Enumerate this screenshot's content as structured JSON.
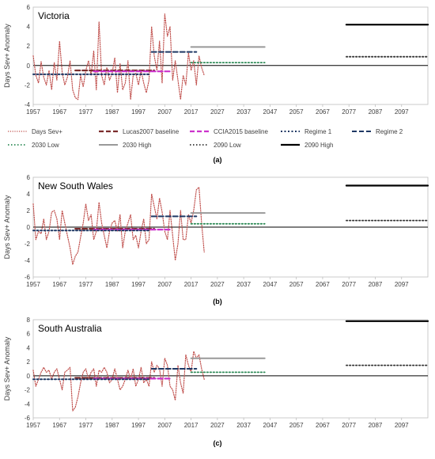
{
  "chart_data": [
    {
      "type": "line",
      "panel_label": "(a)",
      "title": "Victoria",
      "ylabel": "Days Sev+ Anomaly",
      "ylim": [
        -4,
        6
      ],
      "yticks": [
        -4,
        -2,
        0,
        2,
        4,
        6
      ],
      "xlim": [
        1957,
        2107
      ],
      "xticks": [
        1957,
        1967,
        1977,
        1987,
        1997,
        2007,
        2017,
        2027,
        2037,
        2047,
        2057,
        2067,
        2077,
        2087,
        2097
      ],
      "series": [
        {
          "name": "Days Sev+",
          "x": [
            1957,
            1958,
            1959,
            1960,
            1961,
            1962,
            1963,
            1964,
            1965,
            1966,
            1967,
            1968,
            1969,
            1970,
            1971,
            1972,
            1973,
            1974,
            1975,
            1976,
            1977,
            1978,
            1979,
            1980,
            1981,
            1982,
            1983,
            1984,
            1985,
            1986,
            1987,
            1988,
            1989,
            1990,
            1991,
            1992,
            1993,
            1994,
            1995,
            1996,
            1997,
            1998,
            1999,
            2000,
            2001,
            2002,
            2003,
            2004,
            2005,
            2006,
            2007,
            2008,
            2009,
            2010,
            2011,
            2012,
            2013,
            2014,
            2015,
            2016,
            2017,
            2018,
            2019,
            2020,
            2021,
            2022
          ],
          "values": [
            1,
            -1,
            -1.8,
            0.4,
            -1.2,
            -2,
            -0.5,
            -2.5,
            0.3,
            -1.5,
            2.5,
            -0.7,
            -2,
            -1.2,
            0.5,
            -2.5,
            -3.3,
            -3.5,
            -1,
            -2.2,
            -0.5,
            0.5,
            -1,
            1.5,
            -2.5,
            4.5,
            -1,
            -2,
            -0.2,
            -1.5,
            -0.8,
            0.8,
            -2.8,
            0.2,
            -2.5,
            -1.8,
            0.5,
            -3.5,
            -1,
            -0.8,
            -2,
            -0.5,
            -1.8,
            -2.8,
            -1.5,
            4,
            1,
            -0.5,
            2.5,
            -1.8,
            5.3,
            3,
            4,
            -1.5,
            0.5,
            -1.5,
            -3.5,
            -1,
            -2,
            1.3,
            -0.5,
            0.5,
            -2,
            1,
            -0.2,
            -1
          ]
        },
        {
          "name": "Lucas2007 baseline",
          "x": [
            1973,
            2003
          ],
          "values": [
            -0.5,
            -0.5
          ]
        },
        {
          "name": "CCIA2015 baseline",
          "x": [
            1980,
            2009
          ],
          "values": [
            -0.6,
            -0.6
          ]
        },
        {
          "name": "Regime 1",
          "x": [
            1957,
            2001
          ],
          "values": [
            -0.9,
            -0.9
          ]
        },
        {
          "name": "Regime 2",
          "x": [
            2002,
            2019
          ],
          "values": [
            1.4,
            1.4
          ]
        },
        {
          "name": "2030 Low",
          "x": [
            2017,
            2045
          ],
          "values": [
            0.3,
            0.3
          ]
        },
        {
          "name": "2030 High",
          "x": [
            2017,
            2045
          ],
          "values": [
            1.9,
            1.9
          ]
        },
        {
          "name": "2090 Low",
          "x": [
            2076,
            2107
          ],
          "values": [
            0.9,
            0.9
          ]
        },
        {
          "name": "2090 High",
          "x": [
            2076,
            2107
          ],
          "values": [
            4.2,
            4.2
          ]
        }
      ]
    },
    {
      "type": "line",
      "panel_label": "(b)",
      "title": "New South Wales",
      "ylabel": "Days Sev+ Anomaly",
      "ylim": [
        -6,
        6
      ],
      "yticks": [
        -6,
        -4,
        -2,
        0,
        2,
        4,
        6
      ],
      "xlim": [
        1957,
        2107
      ],
      "xticks": [
        1957,
        1967,
        1977,
        1987,
        1997,
        2007,
        2017,
        2027,
        2037,
        2047,
        2057,
        2067,
        2077,
        2087,
        2097
      ],
      "series": [
        {
          "name": "Days Sev+",
          "x": [
            1957,
            1958,
            1959,
            1960,
            1961,
            1962,
            1963,
            1964,
            1965,
            1966,
            1967,
            1968,
            1969,
            1970,
            1971,
            1972,
            1973,
            1974,
            1975,
            1976,
            1977,
            1978,
            1979,
            1980,
            1981,
            1982,
            1983,
            1984,
            1985,
            1986,
            1987,
            1988,
            1989,
            1990,
            1991,
            1992,
            1993,
            1994,
            1995,
            1996,
            1997,
            1998,
            1999,
            2000,
            2001,
            2002,
            2003,
            2004,
            2005,
            2006,
            2007,
            2008,
            2009,
            2010,
            2011,
            2012,
            2013,
            2014,
            2015,
            2016,
            2017,
            2018,
            2019,
            2020,
            2021,
            2022
          ],
          "values": [
            2.8,
            -1.5,
            -0.5,
            -0.8,
            1,
            -1.5,
            -0.5,
            1.8,
            2,
            1,
            -1.5,
            2,
            0.5,
            -1,
            -2.5,
            -4.5,
            -3.5,
            -3,
            -1.2,
            0.5,
            2.8,
            0.8,
            1.5,
            -1.5,
            -0.5,
            3,
            0.5,
            -1,
            -2.5,
            -0.5,
            0.5,
            0.8,
            -0.5,
            1.5,
            -2.5,
            -0.5,
            0.5,
            1.5,
            -1.5,
            -1,
            -2.5,
            -0.5,
            1,
            -2,
            -1.5,
            4,
            2.5,
            1,
            3.5,
            1.8,
            -0.5,
            -1.5,
            2,
            -1,
            -4,
            -2,
            2,
            -1.5,
            -1.5,
            1.5,
            0.5,
            2,
            4.5,
            4.8,
            0.5,
            -3
          ]
        },
        {
          "name": "Lucas2007 baseline",
          "x": [
            1973,
            2003
          ],
          "values": [
            -0.2,
            -0.2
          ]
        },
        {
          "name": "CCIA2015 baseline",
          "x": [
            1980,
            2009
          ],
          "values": [
            -0.3,
            -0.3
          ]
        },
        {
          "name": "Regime 1",
          "x": [
            1957,
            2001
          ],
          "values": [
            -0.4,
            -0.4
          ]
        },
        {
          "name": "Regime 2",
          "x": [
            2002,
            2019
          ],
          "values": [
            1.3,
            1.3
          ]
        },
        {
          "name": "2030 Low",
          "x": [
            2017,
            2045
          ],
          "values": [
            0.4,
            0.4
          ]
        },
        {
          "name": "2030 High",
          "x": [
            2017,
            2045
          ],
          "values": [
            1.7,
            1.7
          ]
        },
        {
          "name": "2090 Low",
          "x": [
            2076,
            2107
          ],
          "values": [
            0.8,
            0.8
          ]
        },
        {
          "name": "2090 High",
          "x": [
            2076,
            2107
          ],
          "values": [
            5,
            5
          ]
        }
      ]
    },
    {
      "type": "line",
      "panel_label": "(c)",
      "title": "South Australia",
      "ylabel": "Days Sev+ Anomaly",
      "ylim": [
        -6,
        8
      ],
      "yticks": [
        -6,
        -4,
        -2,
        0,
        2,
        4,
        6,
        8
      ],
      "xlim": [
        1957,
        2107
      ],
      "xticks": [
        1957,
        1967,
        1977,
        1987,
        1997,
        2007,
        2017,
        2027,
        2037,
        2047,
        2057,
        2067,
        2077,
        2087,
        2097
      ],
      "series": [
        {
          "name": "Days Sev+",
          "x": [
            1957,
            1958,
            1959,
            1960,
            1961,
            1962,
            1963,
            1964,
            1965,
            1966,
            1967,
            1968,
            1969,
            1970,
            1971,
            1972,
            1973,
            1974,
            1975,
            1976,
            1977,
            1978,
            1979,
            1980,
            1981,
            1982,
            1983,
            1984,
            1985,
            1986,
            1987,
            1988,
            1989,
            1990,
            1991,
            1992,
            1993,
            1994,
            1995,
            1996,
            1997,
            1998,
            1999,
            2000,
            2001,
            2002,
            2003,
            2004,
            2005,
            2006,
            2007,
            2008,
            2009,
            2010,
            2011,
            2012,
            2013,
            2014,
            2015,
            2016,
            2017,
            2018,
            2019,
            2020,
            2021,
            2022
          ],
          "values": [
            0.8,
            -1.5,
            -0.5,
            0.5,
            1.2,
            0.5,
            0.8,
            -0.5,
            0.5,
            1,
            -0.5,
            -2,
            0.5,
            0.8,
            1.2,
            -5,
            -4.5,
            -3,
            -1,
            0.5,
            1,
            -0.5,
            0.5,
            1,
            -1.5,
            0.8,
            0.5,
            1.2,
            0.5,
            -1,
            -0.5,
            1,
            -0.5,
            -2,
            -1.5,
            -0.5,
            0.8,
            -0.5,
            1,
            -1.5,
            -0.5,
            1.2,
            -1,
            -0.5,
            -1.5,
            2,
            0.5,
            1.5,
            1,
            -1.5,
            2.5,
            1.5,
            -1.5,
            -2,
            -3.5,
            1.5,
            -1,
            -2.5,
            3,
            1.5,
            0.5,
            3.5,
            2.5,
            3,
            1,
            -0.5
          ]
        },
        {
          "name": "Lucas2007 baseline",
          "x": [
            1973,
            2003
          ],
          "values": [
            -0.3,
            -0.3
          ]
        },
        {
          "name": "CCIA2015 baseline",
          "x": [
            1980,
            2009
          ],
          "values": [
            -0.4,
            -0.4
          ]
        },
        {
          "name": "Regime 1",
          "x": [
            1957,
            2001
          ],
          "values": [
            -0.5,
            -0.5
          ]
        },
        {
          "name": "Regime 2",
          "x": [
            2002,
            2019
          ],
          "values": [
            1,
            1
          ]
        },
        {
          "name": "2030 Low",
          "x": [
            2017,
            2045
          ],
          "values": [
            0.5,
            0.5
          ]
        },
        {
          "name": "2030 High",
          "x": [
            2017,
            2045
          ],
          "values": [
            2.5,
            2.5
          ]
        },
        {
          "name": "2090 Low",
          "x": [
            2076,
            2107
          ],
          "values": [
            1.5,
            1.5
          ]
        },
        {
          "name": "2090 High",
          "x": [
            2076,
            2107
          ],
          "values": [
            7.8,
            7.8
          ]
        }
      ]
    }
  ],
  "legend": [
    {
      "label": "Days Sev+",
      "color": "#c0504d",
      "style": "dotted"
    },
    {
      "label": "Lucas2007 baseline",
      "color": "#7b2c2c",
      "style": "dashed-thick"
    },
    {
      "label": "CCIA2015 baseline",
      "color": "#cc33cc",
      "style": "dashed-thick"
    },
    {
      "label": "Regime 1",
      "color": "#1f3864",
      "style": "dotted-thick"
    },
    {
      "label": "Regime 2",
      "color": "#1f3864",
      "style": "solid-thick"
    },
    {
      "label": "2030 Low",
      "color": "#2e8b57",
      "style": "dotted-thick"
    },
    {
      "label": "2030 High",
      "color": "#999999",
      "style": "solid-thick"
    },
    {
      "label": "2090 Low",
      "color": "#333333",
      "style": "dotted-thick"
    },
    {
      "label": "2090 High",
      "color": "#000000",
      "style": "solid-thick"
    }
  ],
  "colors": {
    "days_sev": "#c0504d",
    "lucas": "#7b2c2c",
    "ccia": "#cc33cc",
    "regime1": "#1f3864",
    "regime2": "#1f3864",
    "low2030": "#2e8b57",
    "high2030": "#999999",
    "low2090": "#333333",
    "high2090": "#000000"
  }
}
